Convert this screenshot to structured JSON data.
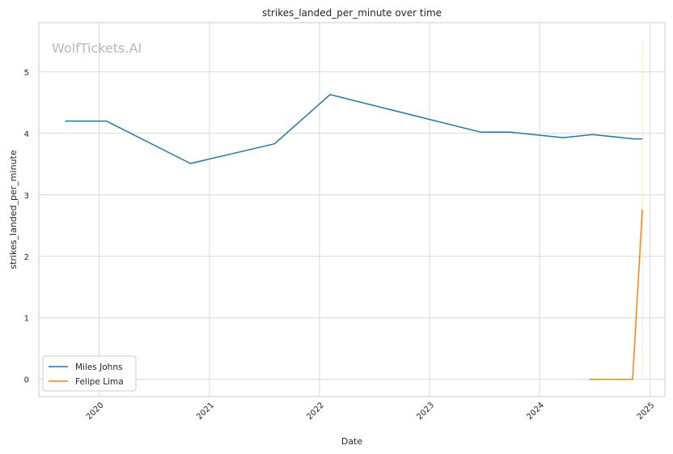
{
  "watermark": "WolfTickets.AI",
  "chart_data": {
    "type": "line",
    "title": "strikes_landed_per_minute over time",
    "xlabel": "Date",
    "ylabel": "strikes_landed_per_minute",
    "x_type": "date",
    "xlim": [
      "2019-06-15",
      "2025-02-20"
    ],
    "ylim": [
      -0.28,
      5.8
    ],
    "x_ticks": [
      "2020-01-01",
      "2021-01-01",
      "2022-01-01",
      "2023-01-01",
      "2024-01-01",
      "2025-01-01"
    ],
    "x_tick_labels": [
      "2020",
      "2021",
      "2022",
      "2023",
      "2024",
      "2025"
    ],
    "y_ticks": [
      0,
      1,
      2,
      3,
      4,
      5
    ],
    "y_tick_labels": [
      "0",
      "1",
      "2",
      "3",
      "4",
      "5"
    ],
    "grid": true,
    "legend_position": "bottom-left",
    "series": [
      {
        "name": "Miles Johns",
        "color": "#1f77b4",
        "points": [
          {
            "x": "2019-09-10",
            "y": 4.2
          },
          {
            "x": "2020-01-25",
            "y": 4.2
          },
          {
            "x": "2020-10-30",
            "y": 3.51
          },
          {
            "x": "2021-08-05",
            "y": 3.83
          },
          {
            "x": "2022-02-05",
            "y": 4.63
          },
          {
            "x": "2023-06-20",
            "y": 4.02
          },
          {
            "x": "2023-09-25",
            "y": 4.02
          },
          {
            "x": "2024-03-20",
            "y": 3.93
          },
          {
            "x": "2024-06-25",
            "y": 3.98
          },
          {
            "x": "2024-11-10",
            "y": 3.91
          },
          {
            "x": "2024-12-07",
            "y": 3.91
          }
        ]
      },
      {
        "name": "Felipe Lima",
        "color": "#ff7f0e",
        "points": [
          {
            "x": "2024-06-15",
            "y": 0.0
          },
          {
            "x": "2024-11-05",
            "y": 0.0
          },
          {
            "x": "2024-12-07",
            "y": 2.76
          }
        ]
      }
    ],
    "marker_line": {
      "x": "2024-12-08",
      "y_top": 5.5,
      "color": "#ffe8cc"
    }
  }
}
